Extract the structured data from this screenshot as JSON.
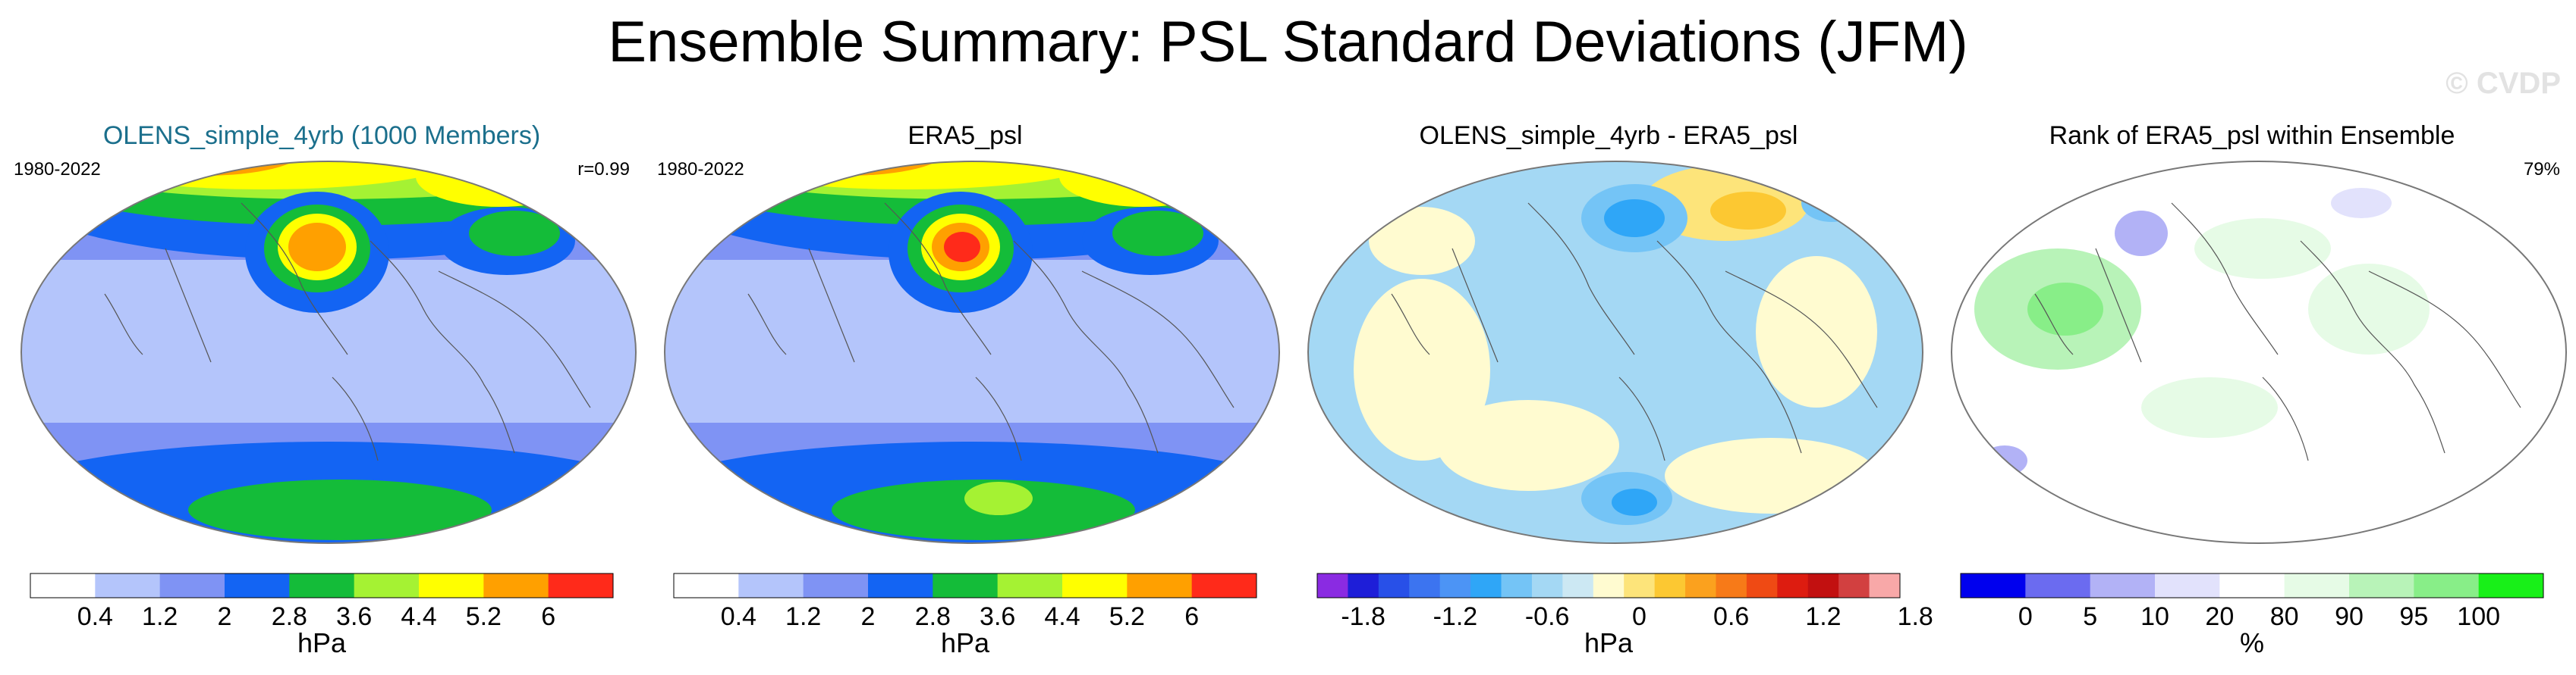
{
  "title": "Ensemble Summary: PSL Standard Deviations (JFM)",
  "watermark": "© CVDP",
  "panels": [
    {
      "title": "OLENS_simple_4yrb (1000 Members)",
      "title_color": "#1b6f8c",
      "left_label": "1980-2022",
      "right_label": "r=0.99",
      "map_style": "ens",
      "colorbar": {
        "colors": [
          "#ffffff",
          "#b4c5fb",
          "#7f93f4",
          "#1364f3",
          "#14bc39",
          "#a5f233",
          "#ffff00",
          "#ffa000",
          "#ff2a1a"
        ],
        "ticks": [
          "0.4",
          "1.2",
          "2",
          "2.8",
          "3.6",
          "4.4",
          "5.2",
          "6"
        ],
        "unit": "hPa",
        "tick_mode": "boundary"
      }
    },
    {
      "title": "ERA5_psl",
      "title_color": "#000000",
      "left_label": "1980-2022",
      "right_label": "",
      "map_style": "obs",
      "colorbar": {
        "colors": [
          "#ffffff",
          "#b4c5fb",
          "#7f93f4",
          "#1364f3",
          "#14bc39",
          "#a5f233",
          "#ffff00",
          "#ffa000",
          "#ff2a1a"
        ],
        "ticks": [
          "0.4",
          "1.2",
          "2",
          "2.8",
          "3.6",
          "4.4",
          "5.2",
          "6"
        ],
        "unit": "hPa",
        "tick_mode": "boundary"
      }
    },
    {
      "title": "OLENS_simple_4yrb - ERA5_psl",
      "title_color": "#000000",
      "left_label": "",
      "right_label": "",
      "map_style": "diff",
      "colorbar": {
        "colors": [
          "#8a2be2",
          "#1e1ed8",
          "#2850e8",
          "#3c74f0",
          "#4c94f5",
          "#2fa6f7",
          "#74c4f6",
          "#a4d8f4",
          "#cce8f3",
          "#fffbd0",
          "#fde47a",
          "#fcc832",
          "#fba11e",
          "#f77a18",
          "#ef4a14",
          "#dd1c10",
          "#c21010",
          "#d24040",
          "#f8a8a8"
        ],
        "ticks": [
          "-1.8",
          "-1.2",
          "-0.6",
          "0",
          "0.6",
          "1.2",
          "1.8"
        ],
        "unit": "hPa",
        "tick_mode": "diff"
      }
    },
    {
      "title": "Rank of ERA5_psl within Ensemble",
      "title_color": "#000000",
      "left_label": "",
      "right_label": "79%",
      "map_style": "rank",
      "colorbar": {
        "colors": [
          "#0000ee",
          "#6b6bf0",
          "#b2b2f6",
          "#e2e2fc",
          "#ffffff",
          "#e6fbe6",
          "#b8f3b8",
          "#88ee88",
          "#18f018"
        ],
        "ticks": [
          "0",
          "5",
          "10",
          "20",
          "80",
          "90",
          "95",
          "100"
        ],
        "unit": "%",
        "tick_mode": "boundary"
      }
    }
  ]
}
